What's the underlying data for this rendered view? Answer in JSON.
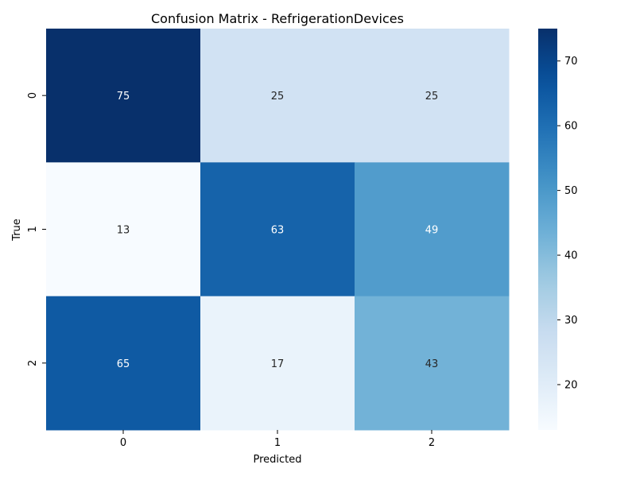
{
  "chart_data": {
    "type": "heatmap",
    "title": "Confusion Matrix - RefrigerationDevices",
    "xlabel": "Predicted",
    "ylabel": "True",
    "x_categories": [
      "0",
      "1",
      "2"
    ],
    "y_categories": [
      "0",
      "1",
      "2"
    ],
    "values": [
      [
        75,
        25,
        25
      ],
      [
        13,
        63,
        49
      ],
      [
        65,
        17,
        43
      ]
    ],
    "colormap": "Blues",
    "vmin": 13,
    "vmax": 75,
    "colorbar_ticks": [
      20,
      30,
      40,
      50,
      60,
      70
    ],
    "annotations": true,
    "grid": false
  }
}
